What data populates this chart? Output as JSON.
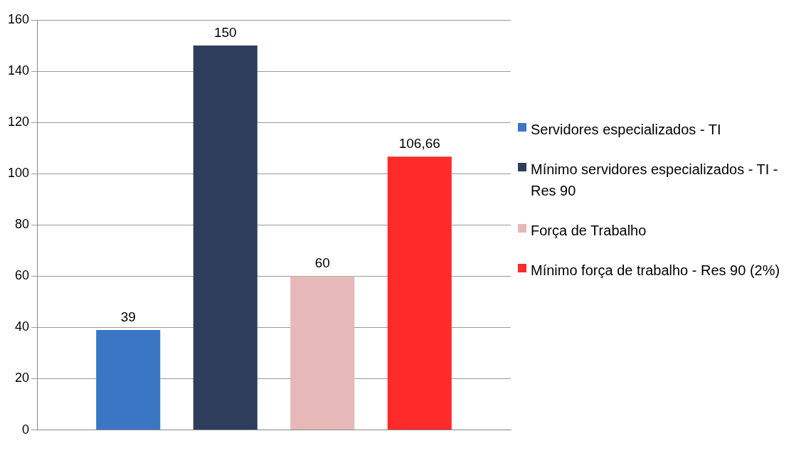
{
  "chart_data": {
    "type": "bar",
    "categories": [
      null
    ],
    "ylim": [
      0,
      160
    ],
    "yticks": [
      0,
      20,
      40,
      60,
      80,
      100,
      120,
      140,
      160
    ],
    "grid": "y",
    "legend": "right",
    "series": [
      {
        "name": "Servidores especializados - TI",
        "color": "#3a76c4",
        "values": [
          39
        ],
        "value_labels": [
          "39"
        ]
      },
      {
        "name": "Mínimo servidores especializados - TI - Res 90",
        "color": "#2e3d5c",
        "values": [
          150
        ],
        "value_labels": [
          "150"
        ]
      },
      {
        "name": "Força de Trabalho",
        "color": "#e6b9b8",
        "values": [
          60
        ],
        "value_labels": [
          "60"
        ]
      },
      {
        "name": "Mínimo força de trabalho - Res 90 (2%)",
        "color": "#ff2a2a",
        "values": [
          106.66
        ],
        "value_labels": [
          "106,66"
        ]
      }
    ]
  }
}
